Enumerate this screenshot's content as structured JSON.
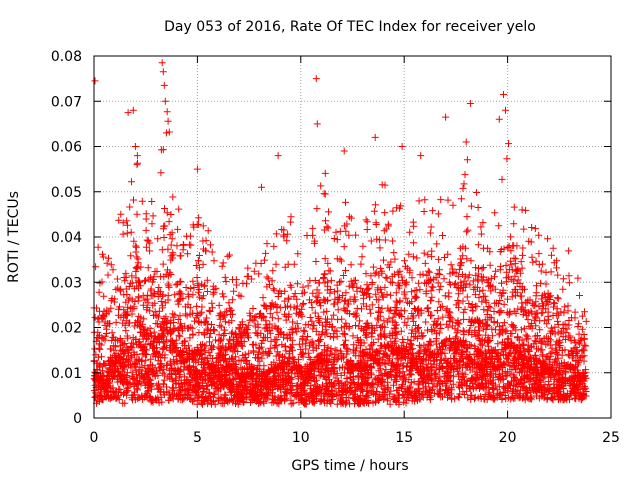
{
  "chart_data": {
    "type": "scatter",
    "title": "Day 053 of 2016, Rate Of TEC Index for receiver yelo",
    "xlabel": "GPS time / hours",
    "ylabel": "ROTI / TECUs",
    "xlim": [
      0,
      25
    ],
    "ylim": [
      0,
      0.08
    ],
    "xticks": [
      0,
      5,
      10,
      15,
      20,
      25
    ],
    "xtick_labels": [
      "0",
      "5",
      "10",
      "15",
      "20",
      "25"
    ],
    "yticks": [
      0,
      0.01,
      0.02,
      0.03,
      0.04,
      0.05,
      0.06,
      0.07,
      0.08
    ],
    "ytick_labels": [
      "0",
      "0.01",
      "0.02",
      "0.03",
      "0.04",
      "0.05",
      "0.06",
      "0.07",
      "0.08"
    ],
    "grid": true,
    "marker": "+",
    "colors": {
      "points": "#ff0000",
      "grid": "#a0a0a0",
      "axis": "#000000"
    },
    "series": [
      {
        "name": "ROTI",
        "note": "dense scatter of several thousand points; representative envelope and highlighted peaks estimated from image",
        "envelope": {
          "x": [
            0,
            0.5,
            1,
            1.5,
            2,
            2.5,
            3,
            3.5,
            4,
            4.5,
            5,
            5.5,
            6,
            6.5,
            7,
            7.5,
            8,
            8.5,
            9,
            9.5,
            10,
            10.5,
            11,
            11.5,
            12,
            12.5,
            13,
            13.5,
            14,
            14.5,
            15,
            15.5,
            16,
            16.5,
            17,
            17.5,
            18,
            18.5,
            19,
            19.5,
            20,
            20.5,
            21,
            21.5,
            22,
            22.5,
            23,
            23.5,
            23.8
          ],
          "upper": [
            0.045,
            0.036,
            0.042,
            0.048,
            0.06,
            0.045,
            0.05,
            0.072,
            0.048,
            0.04,
            0.052,
            0.042,
            0.035,
            0.038,
            0.03,
            0.034,
            0.036,
            0.04,
            0.042,
            0.046,
            0.038,
            0.042,
            0.06,
            0.045,
            0.055,
            0.048,
            0.042,
            0.05,
            0.052,
            0.05,
            0.052,
            0.048,
            0.05,
            0.045,
            0.055,
            0.048,
            0.058,
            0.05,
            0.045,
            0.05,
            0.065,
            0.05,
            0.045,
            0.042,
            0.04,
            0.036,
            0.038,
            0.03,
            0.032
          ],
          "lower": [
            0.003,
            0.004,
            0.004,
            0.003,
            0.004,
            0.004,
            0.003,
            0.003,
            0.004,
            0.004,
            0.003,
            0.003,
            0.003,
            0.003,
            0.003,
            0.003,
            0.003,
            0.003,
            0.003,
            0.003,
            0.003,
            0.003,
            0.003,
            0.003,
            0.003,
            0.003,
            0.003,
            0.003,
            0.003,
            0.003,
            0.003,
            0.003,
            0.004,
            0.004,
            0.004,
            0.004,
            0.004,
            0.004,
            0.004,
            0.004,
            0.004,
            0.004,
            0.004,
            0.004,
            0.004,
            0.004,
            0.004,
            0.004,
            0.004
          ],
          "typical": [
            0.009,
            0.008,
            0.012,
            0.014,
            0.016,
            0.014,
            0.015,
            0.02,
            0.014,
            0.012,
            0.014,
            0.011,
            0.01,
            0.011,
            0.009,
            0.009,
            0.009,
            0.01,
            0.011,
            0.012,
            0.01,
            0.011,
            0.013,
            0.012,
            0.013,
            0.011,
            0.011,
            0.013,
            0.015,
            0.014,
            0.014,
            0.012,
            0.014,
            0.013,
            0.016,
            0.015,
            0.016,
            0.014,
            0.013,
            0.014,
            0.016,
            0.014,
            0.012,
            0.012,
            0.011,
            0.01,
            0.011,
            0.009,
            0.009
          ]
        },
        "peaks": [
          {
            "x": 0.05,
            "y": 0.0745
          },
          {
            "x": 1.65,
            "y": 0.0675
          },
          {
            "x": 1.9,
            "y": 0.068
          },
          {
            "x": 2.0,
            "y": 0.06
          },
          {
            "x": 2.1,
            "y": 0.058
          },
          {
            "x": 3.3,
            "y": 0.0785
          },
          {
            "x": 3.35,
            "y": 0.0765
          },
          {
            "x": 3.4,
            "y": 0.0735
          },
          {
            "x": 3.45,
            "y": 0.07
          },
          {
            "x": 3.5,
            "y": 0.063
          },
          {
            "x": 5.0,
            "y": 0.055
          },
          {
            "x": 8.1,
            "y": 0.051
          },
          {
            "x": 8.9,
            "y": 0.058
          },
          {
            "x": 10.75,
            "y": 0.075
          },
          {
            "x": 10.8,
            "y": 0.065
          },
          {
            "x": 12.1,
            "y": 0.059
          },
          {
            "x": 13.6,
            "y": 0.062
          },
          {
            "x": 14.9,
            "y": 0.06
          },
          {
            "x": 15.8,
            "y": 0.058
          },
          {
            "x": 17.0,
            "y": 0.0665
          },
          {
            "x": 18.0,
            "y": 0.061
          },
          {
            "x": 18.2,
            "y": 0.0695
          },
          {
            "x": 19.6,
            "y": 0.066
          },
          {
            "x": 19.8,
            "y": 0.0715
          },
          {
            "x": 19.9,
            "y": 0.068
          },
          {
            "x": 20.7,
            "y": 0.046
          }
        ]
      }
    ]
  }
}
